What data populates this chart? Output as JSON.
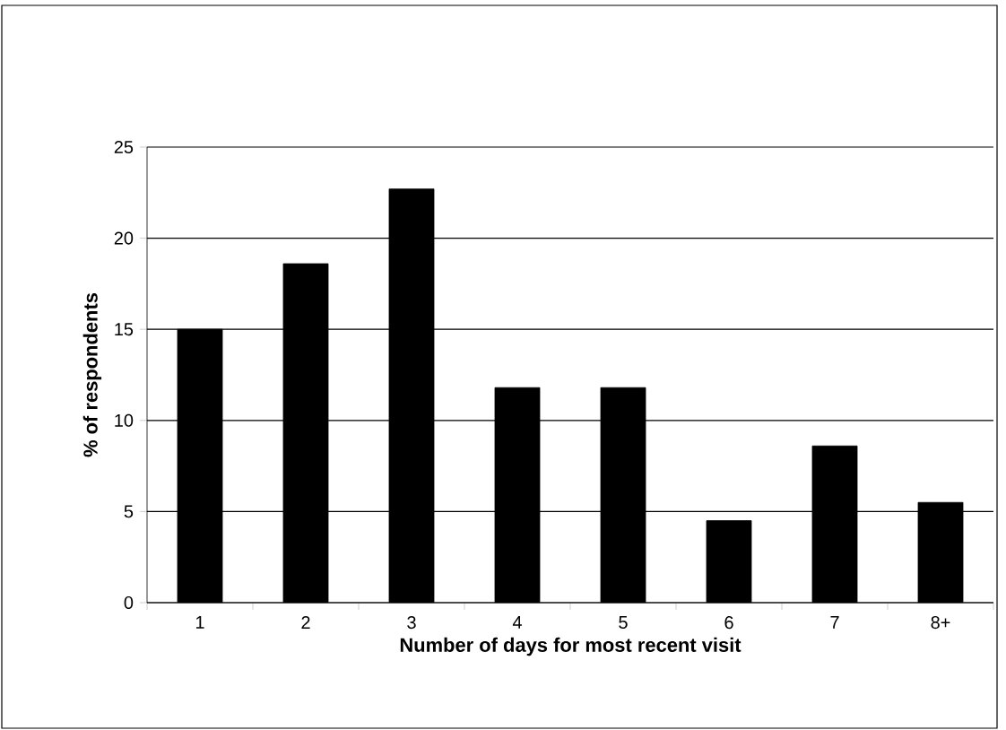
{
  "chart_data": {
    "type": "bar",
    "xlabel": "Number of days for most recent visit",
    "ylabel": "% of respondents",
    "categories": [
      "1",
      "2",
      "3",
      "4",
      "5",
      "6",
      "7",
      "8+"
    ],
    "values": [
      15.0,
      18.6,
      22.7,
      11.8,
      11.8,
      4.5,
      8.6,
      5.5
    ],
    "color": "#000000",
    "ylim": [
      0,
      25
    ],
    "yticks": [
      0,
      5,
      10,
      15,
      20,
      25
    ],
    "grid": "y"
  }
}
